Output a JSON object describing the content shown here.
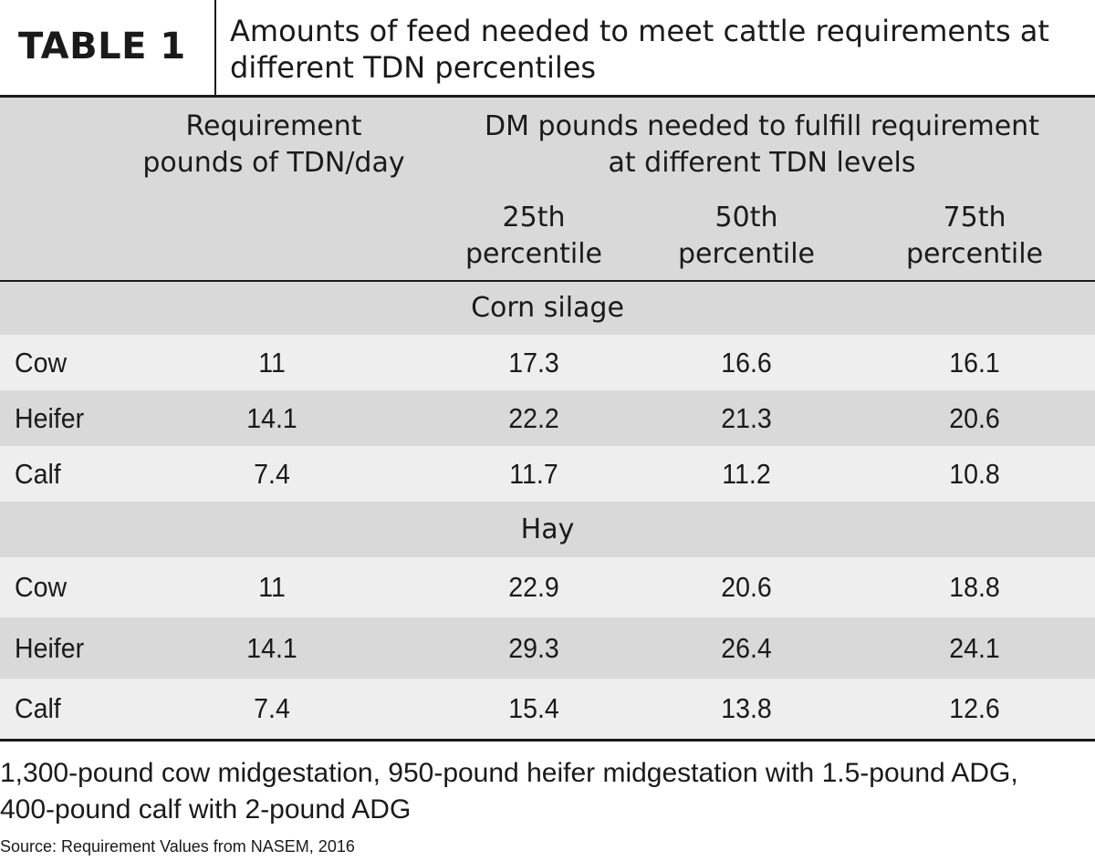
{
  "header": {
    "label": "TABLE 1",
    "title": "Amounts of feed needed to meet cattle requirements at different TDN percentiles"
  },
  "columns": {
    "requirement_line1": "Requirement",
    "requirement_line2": "pounds of TDN/day",
    "dm_line1": "DM pounds needed to fulfill requirement",
    "dm_line2": "at different TDN levels",
    "p25_line1": "25th",
    "p25_line2": "percentile",
    "p50_line1": "50th",
    "p50_line2": "percentile",
    "p75_line1": "75th",
    "p75_line2": "percentile"
  },
  "sections": [
    {
      "label": "Corn silage",
      "rows": [
        {
          "name": "Cow",
          "req": "11",
          "p25": "17.3",
          "p50": "16.6",
          "p75": "16.1"
        },
        {
          "name": "Heifer",
          "req": "14.1",
          "p25": "22.2",
          "p50": "21.3",
          "p75": "20.6"
        },
        {
          "name": "Calf",
          "req": "7.4",
          "p25": "11.7",
          "p50": "11.2",
          "p75": "10.8"
        }
      ]
    },
    {
      "label": "Hay",
      "rows": [
        {
          "name": "Cow",
          "req": "11",
          "p25": "22.9",
          "p50": "20.6",
          "p75": "18.8"
        },
        {
          "name": "Heifer",
          "req": "14.1",
          "p25": "29.3",
          "p50": "26.4",
          "p75": "24.1"
        },
        {
          "name": "Calf",
          "req": "7.4",
          "p25": "15.4",
          "p50": "13.8",
          "p75": "12.6"
        }
      ]
    }
  ],
  "footnote": "1,300-pound cow midgestation, 950-pound heifer midgestation with 1.5-pound ADG, 400-pound calf with 2-pound ADG",
  "source": "Source: Requirement Values from NASEM, 2016"
}
